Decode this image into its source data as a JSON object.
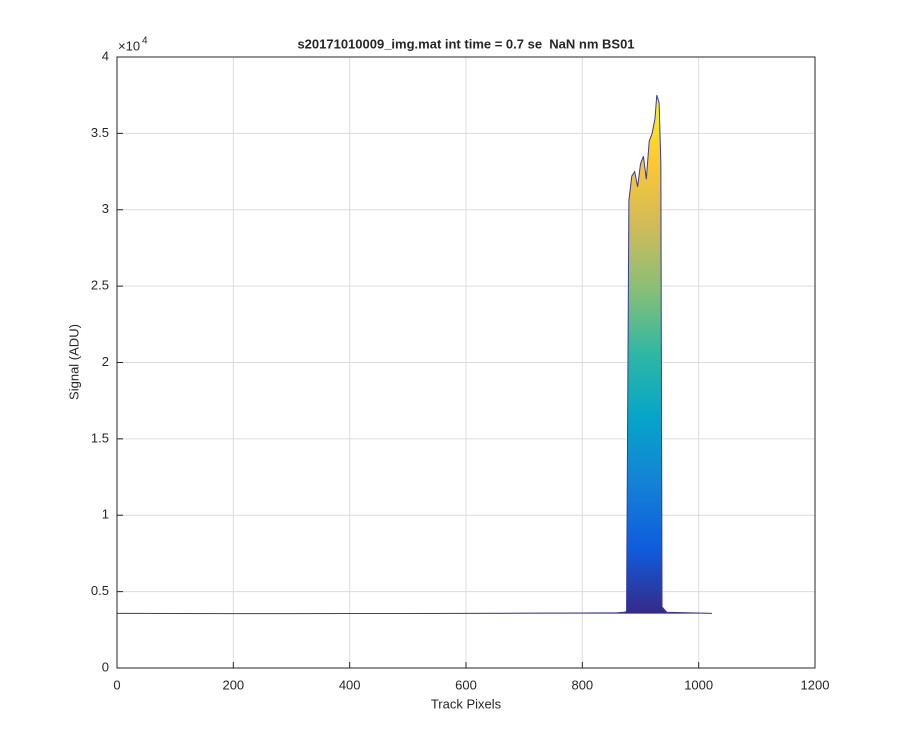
{
  "chart_data": {
    "type": "area",
    "title": "s20171010009_img.mat int time = 0.7 se  NaN nm BS01",
    "x_label": "Track Pixels",
    "y_label": "Signal (ADU)",
    "y_exponent_base": "×10",
    "y_exponent": "4",
    "x": [
      0,
      100,
      200,
      300,
      400,
      500,
      600,
      700,
      800,
      860,
      872,
      876,
      880,
      885,
      890,
      895,
      900,
      905,
      910,
      915,
      920,
      925,
      928,
      932,
      935,
      937,
      945,
      1000,
      1023
    ],
    "values": [
      3580,
      3570,
      3560,
      3560,
      3570,
      3570,
      3580,
      3590,
      3600,
      3620,
      3650,
      3700,
      30600,
      32200,
      32500,
      31500,
      33000,
      33500,
      32000,
      34500,
      35000,
      36000,
      37500,
      37000,
      33000,
      4000,
      3650,
      3600,
      3580
    ],
    "colormap": [
      "#352a87",
      "#0f5cdd",
      "#1481d6",
      "#06a4ca",
      "#2eb7a4",
      "#87bf77",
      "#d1bb59",
      "#fec832",
      "#f9fb0e"
    ],
    "line_color": "#3a3a9a",
    "xlim": [
      0,
      1200
    ],
    "xticks": [
      0,
      200,
      400,
      600,
      800,
      1000,
      1200
    ],
    "ylim": [
      0,
      40000
    ],
    "yticks": [
      {
        "value": 0,
        "label": "0"
      },
      {
        "value": 5000,
        "label": "0.5"
      },
      {
        "value": 10000,
        "label": "1"
      },
      {
        "value": 15000,
        "label": "1.5"
      },
      {
        "value": 20000,
        "label": "2"
      },
      {
        "value": 25000,
        "label": "2.5"
      },
      {
        "value": 30000,
        "label": "3"
      },
      {
        "value": 35000,
        "label": "3.5"
      },
      {
        "value": 40000,
        "label": "4"
      }
    ],
    "grid": true
  }
}
